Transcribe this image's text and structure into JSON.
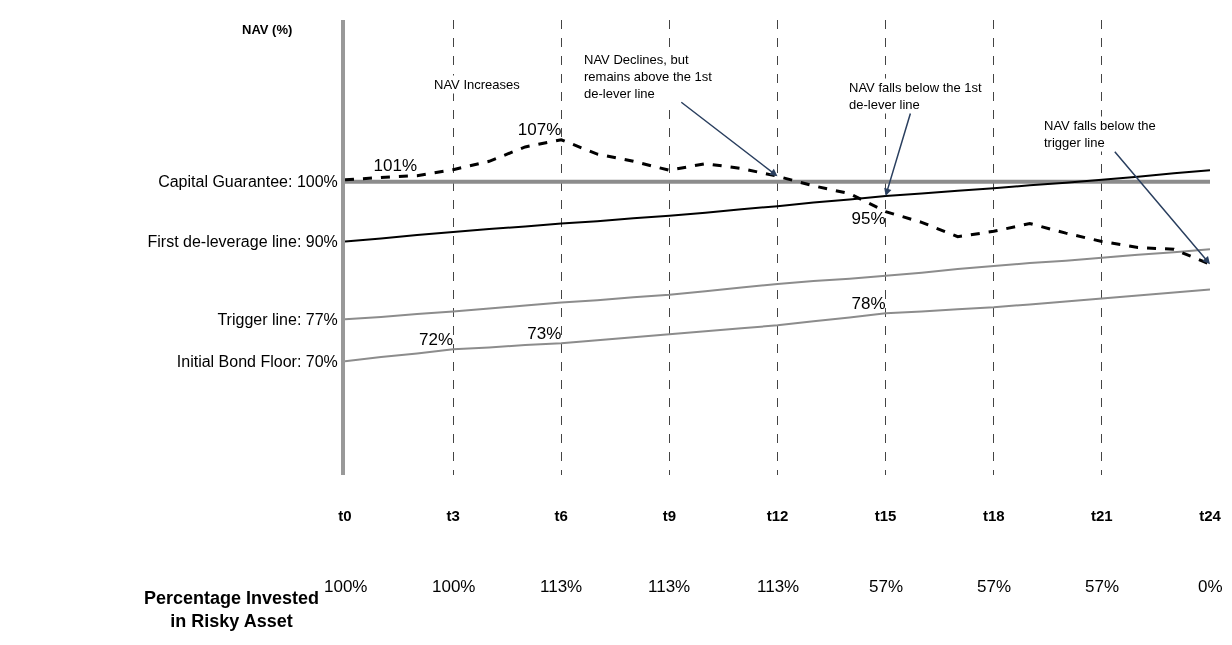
{
  "chart_data": {
    "type": "line",
    "ylabel": "NAV (%)",
    "ylim": [
      51,
      127
    ],
    "yticks": [
      {
        "value": 100,
        "label": "Capital Guarantee: 100%"
      },
      {
        "value": 90,
        "label": "First de-leverage line: 90%"
      },
      {
        "value": 77,
        "label": "Trigger line: 77%"
      },
      {
        "value": 70,
        "label": "Initial Bond Floor: 70%"
      }
    ],
    "categories": [
      "t0",
      null,
      null,
      "t3",
      null,
      null,
      "t6",
      null,
      null,
      "t9",
      null,
      null,
      "t12",
      null,
      null,
      "t15",
      null,
      null,
      "t18",
      null,
      null,
      "t21",
      null,
      null,
      "t24"
    ],
    "grid": "x",
    "series": [
      {
        "color": "#8c8c8c",
        "values": [
          100,
          100,
          100,
          100,
          100,
          100,
          100,
          100,
          100,
          100,
          100,
          100,
          100,
          100,
          100,
          100,
          100,
          100,
          100,
          100,
          100,
          100,
          100,
          100,
          100
        ],
        "line_style": "solid"
      },
      {
        "color": "#000000",
        "values": [
          90,
          90.5,
          91.1,
          91.6,
          92.1,
          92.5,
          93,
          93.4,
          93.9,
          94.3,
          94.8,
          95.4,
          95.9,
          96.5,
          97,
          97.6,
          98,
          98.5,
          98.9,
          99.4,
          99.8,
          100.3,
          100.8,
          101.4,
          101.9
        ],
        "line_style": "solid"
      },
      {
        "color": "#8c8c8c",
        "values": [
          77,
          77.4,
          77.9,
          78.3,
          78.8,
          79.3,
          79.8,
          80.2,
          80.7,
          81.1,
          81.7,
          82.3,
          82.9,
          83.4,
          83.8,
          84.3,
          84.8,
          85.4,
          85.9,
          86.4,
          86.8,
          87.3,
          87.8,
          88.2,
          88.7
        ],
        "line_style": "solid"
      },
      {
        "color": "#8c8c8c",
        "values": [
          70,
          70.7,
          71.3,
          72,
          72.3,
          72.7,
          73,
          73.5,
          74,
          74.5,
          75,
          75.5,
          76,
          76.7,
          77.3,
          78,
          78.3,
          78.7,
          79,
          79.5,
          80,
          80.5,
          81,
          81.5,
          82
        ],
        "line_style": "solid",
        "value_labels": [
          null,
          null,
          null,
          "72%",
          null,
          null,
          "73%",
          null,
          null,
          null,
          null,
          null,
          null,
          null,
          null,
          "78%",
          null,
          null,
          null,
          null,
          null,
          null,
          null,
          null,
          null
        ]
      },
      {
        "color": "#000000",
        "values": [
          100.3,
          100.7,
          101,
          102,
          103.4,
          105.8,
          107,
          104.6,
          103.4,
          101.9,
          103,
          102.2,
          100.9,
          99.3,
          98,
          95,
          93.2,
          90.8,
          91.7,
          93,
          91.4,
          90,
          89,
          88.7,
          86.2
        ],
        "line_style": "dashed",
        "value_labels": [
          null,
          null,
          "101%",
          null,
          null,
          null,
          "107%",
          null,
          null,
          null,
          null,
          null,
          null,
          null,
          null,
          "95%",
          null,
          null,
          null,
          null,
          null,
          null,
          null,
          null,
          null
        ]
      }
    ],
    "annotations": [
      "NAV Increases",
      {
        "text": "NAV Declines, but remains above the 1st de-lever line",
        "x": "t12",
        "y": 100.9
      },
      {
        "text": "NAV falls below the 1st de-lever line",
        "x": "t15",
        "y": 97.6
      },
      {
        "text": "NAV falls below the trigger line",
        "x": "t24",
        "y": 86.2
      },
      "Percentage Invested in Risky Asset",
      "100%",
      "100%",
      "113%",
      "113%",
      "113%",
      "57%",
      "57%",
      "57%",
      "0%"
    ]
  }
}
